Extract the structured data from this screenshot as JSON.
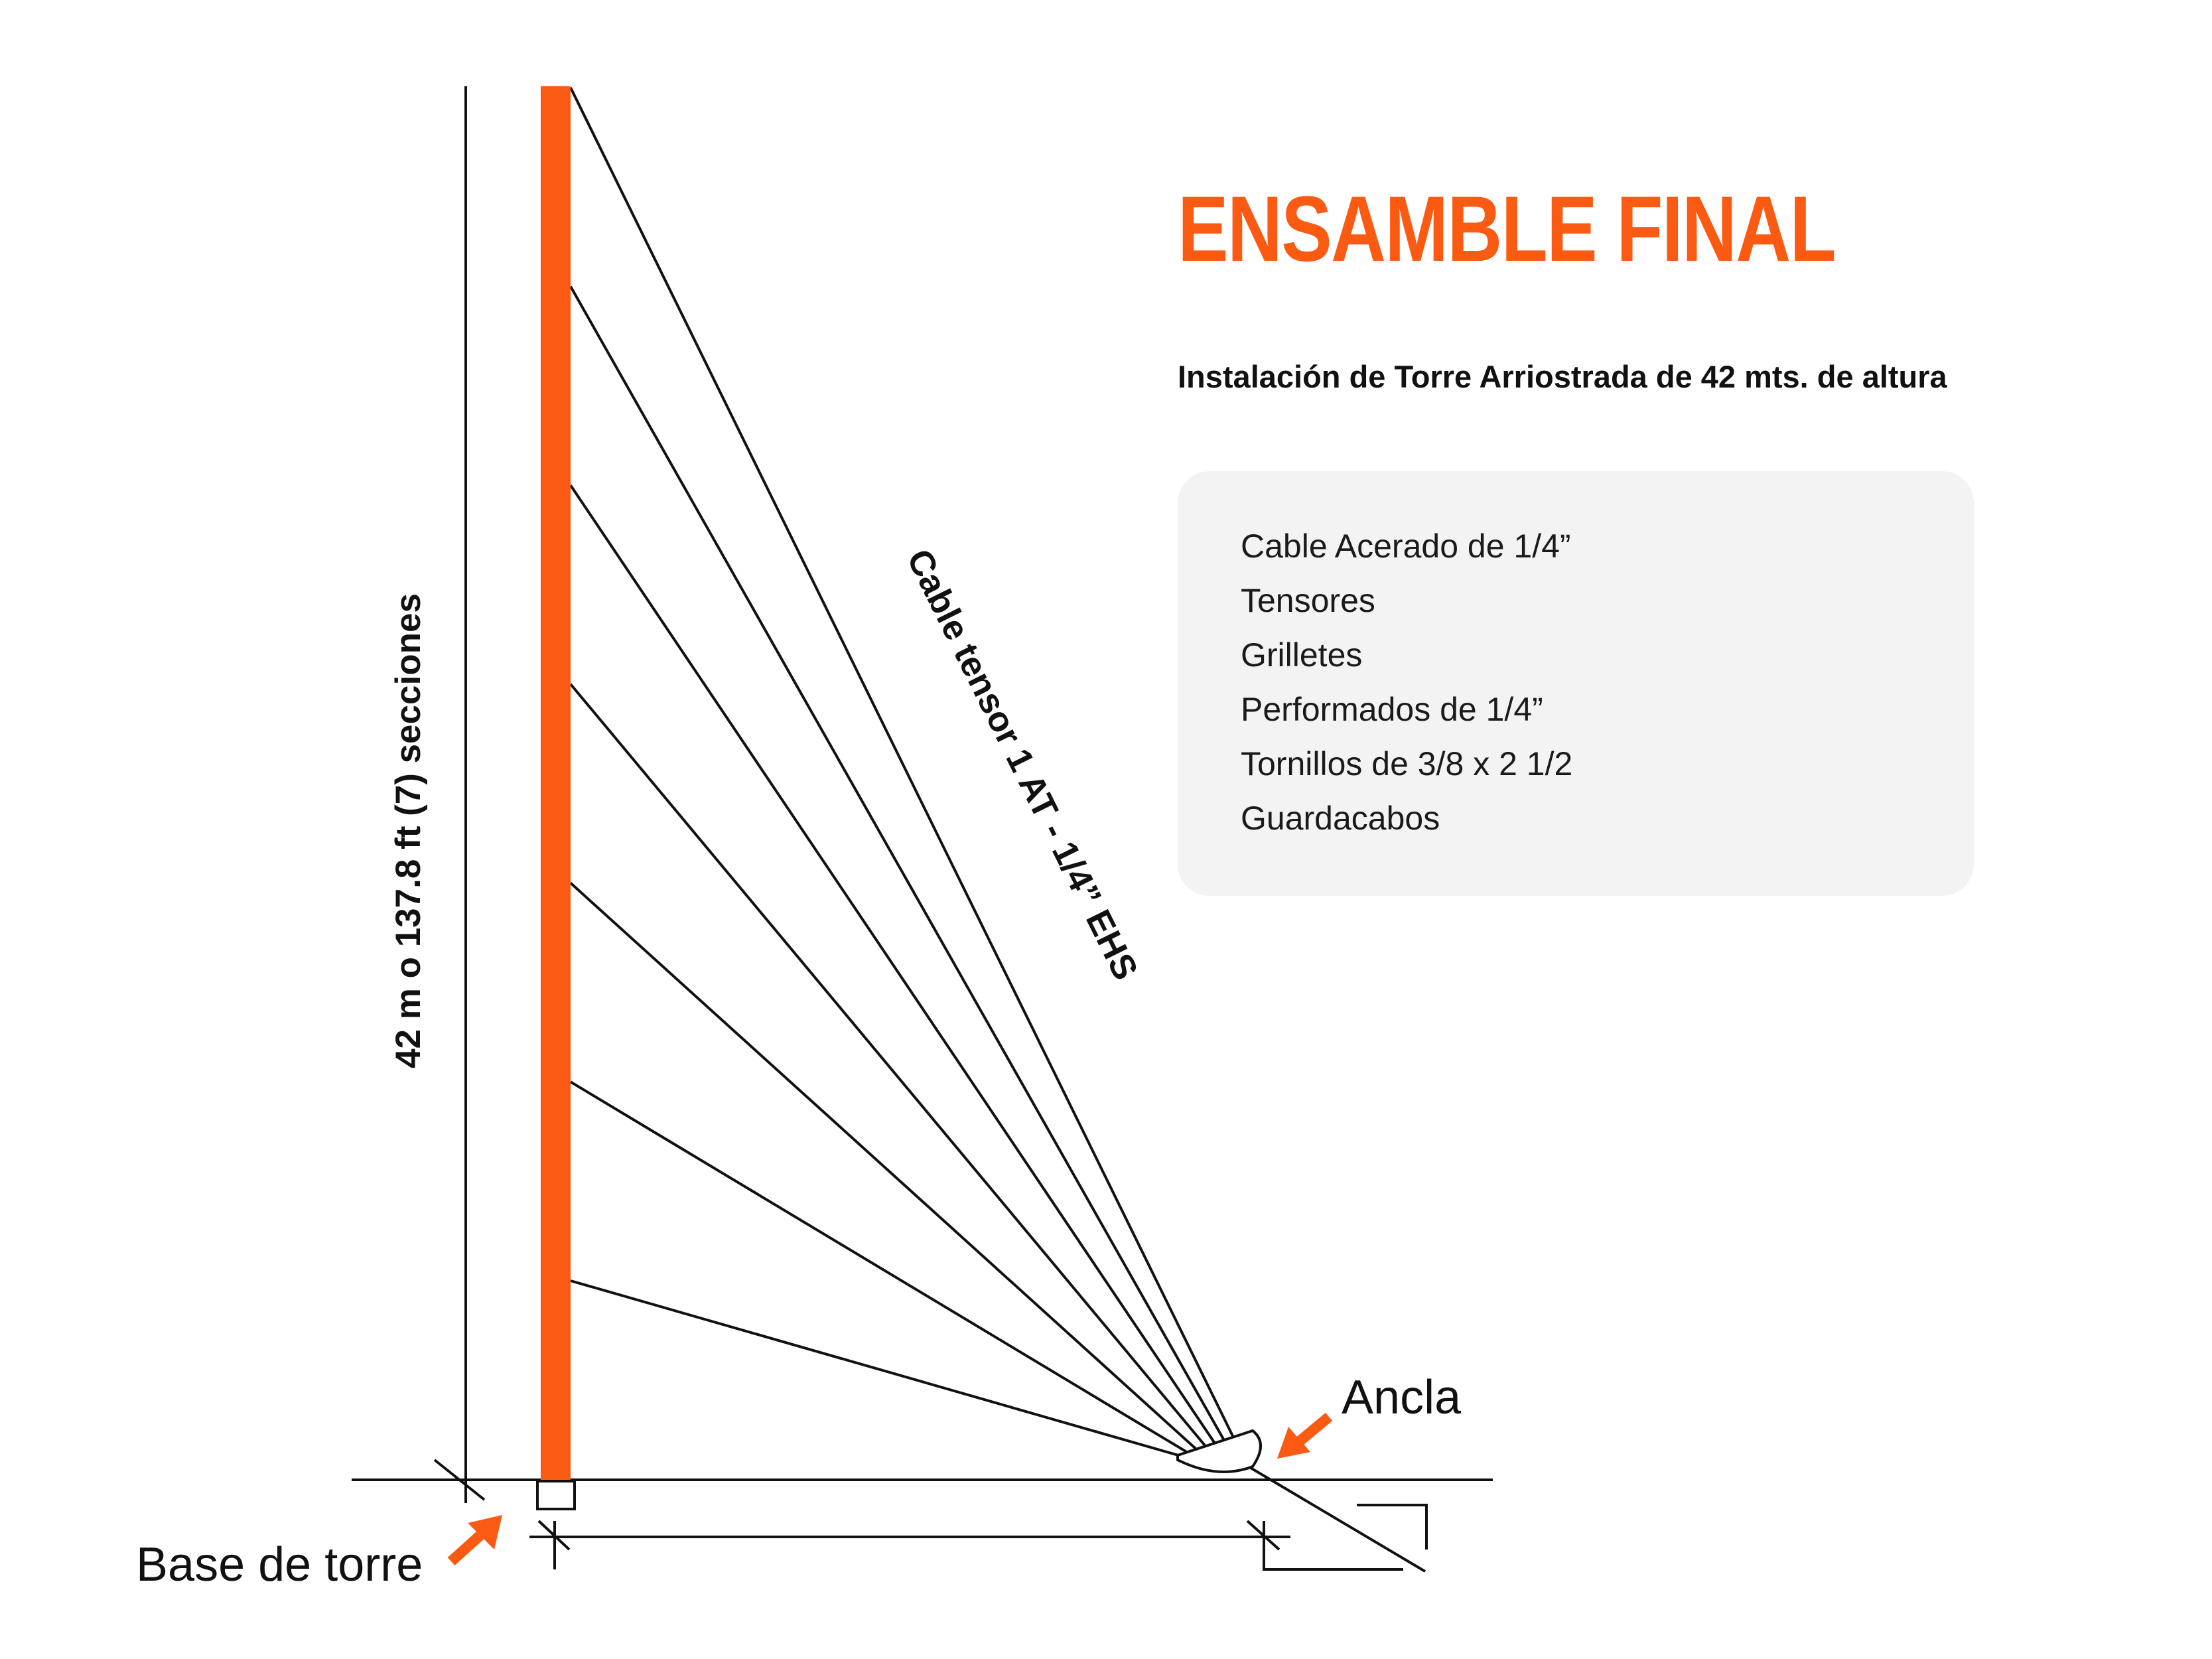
{
  "header": {
    "title": "ENSAMBLE FINAL",
    "subtitle": "Instalación de Torre Arriostrada de 42 mts. de altura"
  },
  "materials": {
    "items": [
      "Cable Acerado de 1/4”",
      "Tensores",
      "Grilletes",
      "Performados de 1/4”",
      "Tornillos de 3/8 x 2 1/2",
      "Guardacabos"
    ]
  },
  "diagram": {
    "height_label": "42 m o 137.8 ft (7) secciones",
    "cable_label": "Cable tensor 1 AT - 1/4” EHS",
    "anchor_label": "Ancla",
    "base_label": "Base de torre",
    "guy_cable_count": 7,
    "colors": {
      "accent": "#fa5a12",
      "line": "#111111",
      "panel": "#f3f3f3"
    }
  }
}
